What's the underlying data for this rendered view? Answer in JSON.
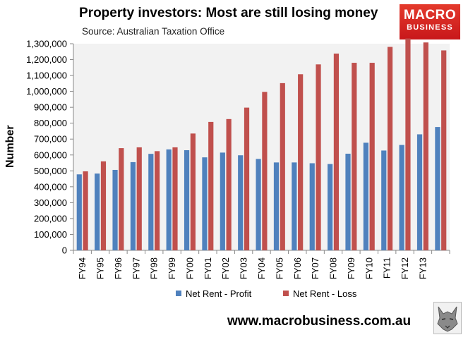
{
  "header": {
    "title": "Property investors: Most are still losing money",
    "source": "Source: Australian Taxation Office"
  },
  "logo": {
    "line1": "MACRO",
    "line2": "BUSINESS"
  },
  "footer": {
    "url": "www.macrobusiness.com.au"
  },
  "colors": {
    "profit": "#4f81bd",
    "loss": "#c0504d",
    "plot_background": "#f2f2f2",
    "logo_red": "#d42a24"
  },
  "chart_data": {
    "type": "bar",
    "title": "Property investors: Most are still losing money",
    "xlabel": "",
    "ylabel": "Number",
    "ylim": [
      0,
      1300000
    ],
    "yticks": [
      "0",
      "100,000",
      "200,000",
      "300,000",
      "400,000",
      "500,000",
      "600,000",
      "700,000",
      "800,000",
      "900,000",
      "1,000,000",
      "1,100,000",
      "1,200,000",
      "1,300,000"
    ],
    "categories": [
      "FY94",
      "FY95",
      "FY96",
      "FY97",
      "FY98",
      "FY99",
      "FY00",
      "FY01",
      "FY02",
      "FY03",
      "FY04",
      "FY05",
      "FY06",
      "FY07",
      "FY08",
      "FY09",
      "FY10",
      "FY11",
      "FY12",
      "FY13",
      ""
    ],
    "series": [
      {
        "name": "Net Rent - Profit",
        "values": [
          478000,
          483000,
          506000,
          555000,
          607000,
          635000,
          630000,
          585000,
          615000,
          598000,
          575000,
          553000,
          553000,
          548000,
          543000,
          608000,
          677000,
          628000,
          663000,
          730000,
          776000
        ]
      },
      {
        "name": "Net Rent - Loss",
        "values": [
          497000,
          560000,
          643000,
          648000,
          624000,
          648000,
          735000,
          808000,
          826000,
          898000,
          997000,
          1052000,
          1108000,
          1170000,
          1238000,
          1180000,
          1180000,
          1280000,
          1333000,
          1308000,
          1258000
        ]
      }
    ],
    "grid": false,
    "legend": "bottom"
  }
}
